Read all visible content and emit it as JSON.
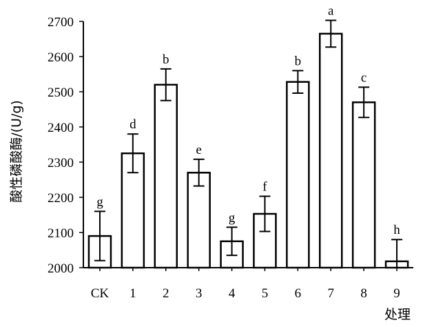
{
  "chart_data": {
    "type": "bar",
    "categories": [
      "CK",
      "1",
      "2",
      "3",
      "4",
      "5",
      "6",
      "7",
      "8",
      "9"
    ],
    "values": [
      2090,
      2325,
      2520,
      2270,
      2075,
      2153,
      2528,
      2665,
      2470,
      2018
    ],
    "errors": [
      70,
      55,
      45,
      38,
      40,
      50,
      32,
      38,
      43,
      62
    ],
    "significance": [
      "g",
      "d",
      "b",
      "e",
      "g",
      "f",
      "b",
      "a",
      "c",
      "h"
    ],
    "xlabel": "处理",
    "ylabel": "酸性磷酸酶/(U/g)",
    "ylim": [
      2000,
      2700
    ],
    "yticks": [
      2000,
      2100,
      2200,
      2300,
      2400,
      2500,
      2600,
      2700
    ],
    "grid": false,
    "bar_fill": "#ffffff",
    "bar_stroke": "#000000"
  }
}
